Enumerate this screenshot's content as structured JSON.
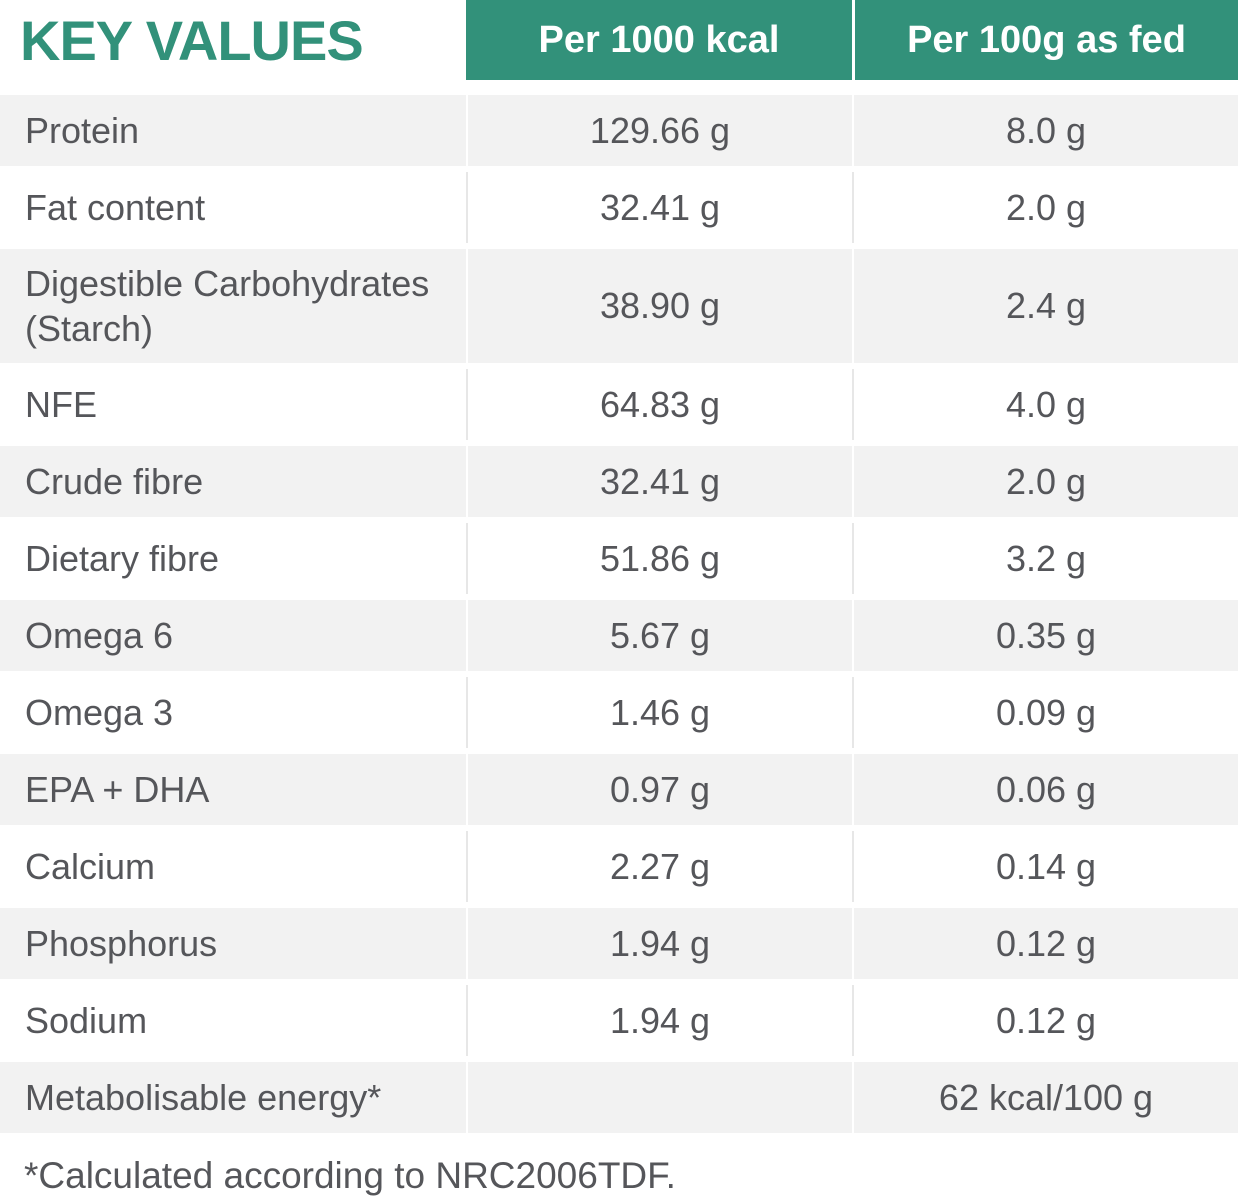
{
  "title": "KEY VALUES",
  "table": {
    "columns": [
      "Per 1000 kcal",
      "Per 100g as fed"
    ],
    "rows": [
      {
        "label": "Protein",
        "per_1000_kcal": "129.66 g",
        "per_100g_as_fed": "8.0 g"
      },
      {
        "label": "Fat content",
        "per_1000_kcal": "32.41 g",
        "per_100g_as_fed": "2.0 g"
      },
      {
        "label": "Digestible Carbohydrates (Starch)",
        "per_1000_kcal": "38.90 g",
        "per_100g_as_fed": "2.4 g"
      },
      {
        "label": "NFE",
        "per_1000_kcal": "64.83 g",
        "per_100g_as_fed": "4.0 g"
      },
      {
        "label": "Crude fibre",
        "per_1000_kcal": "32.41 g",
        "per_100g_as_fed": "2.0 g"
      },
      {
        "label": "Dietary fibre",
        "per_1000_kcal": "51.86 g",
        "per_100g_as_fed": "3.2 g"
      },
      {
        "label": "Omega 6",
        "per_1000_kcal": "5.67 g",
        "per_100g_as_fed": "0.35 g"
      },
      {
        "label": "Omega 3",
        "per_1000_kcal": "1.46 g",
        "per_100g_as_fed": "0.09 g"
      },
      {
        "label": "EPA + DHA",
        "per_1000_kcal": "0.97 g",
        "per_100g_as_fed": "0.06 g"
      },
      {
        "label": "Calcium",
        "per_1000_kcal": "2.27 g",
        "per_100g_as_fed": "0.14 g"
      },
      {
        "label": "Phosphorus",
        "per_1000_kcal": "1.94 g",
        "per_100g_as_fed": "0.12 g"
      },
      {
        "label": "Sodium",
        "per_1000_kcal": "1.94 g",
        "per_100g_as_fed": "0.12 g"
      },
      {
        "label": "Metabolisable energy*",
        "per_1000_kcal": "",
        "per_100g_as_fed": "62 kcal/100 g"
      }
    ]
  },
  "footnote": "*Calculated according to NRC2006TDF.",
  "colors": {
    "accent_green": "#32917A",
    "row_shade": "#F2F2F2",
    "text_gray": "#55565A",
    "header_text": "#FFFFFF"
  }
}
